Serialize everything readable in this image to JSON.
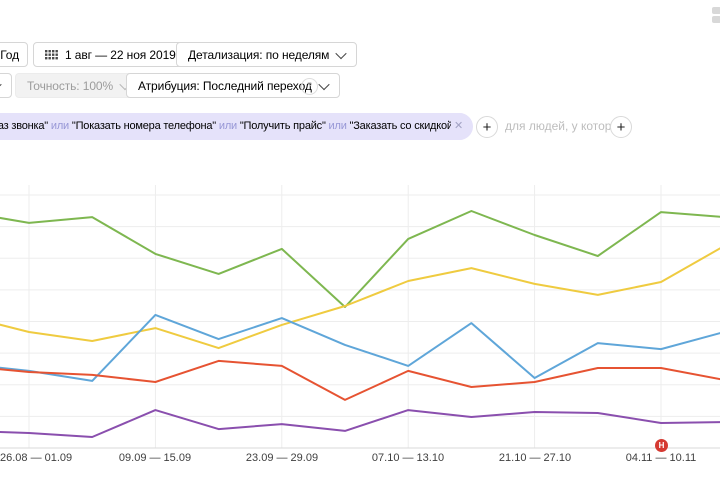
{
  "toolbar": {
    "period": "Год",
    "date_range": "1 авг — 22 ноя 2019",
    "granularity": "Детализация: по неделям",
    "accuracy": "Точность: 100%",
    "attribution": "Атрибуция: Последний переход"
  },
  "segment_bar": {
    "connector": "или",
    "goals": [
      "\"Заказ звонка\"",
      "\"Показать номера телефона\"",
      "\"Получить прайс\"",
      "\"Заказать со скидкой\""
    ],
    "add_condition_placeholder": "для людей, у которых"
  },
  "icons": {
    "help": "?",
    "close": "✕",
    "plus": "+"
  },
  "chart_data": {
    "type": "line",
    "title": "",
    "xlabel": "",
    "ylabel": "",
    "ylim": [
      0,
      100
    ],
    "grid": true,
    "legend_position": "none",
    "x_tick_labels": [
      "26.08 — 01.09",
      "09.09 — 15.09",
      "23.09 — 29.09",
      "07.10 — 13.10",
      "21.10 — 27.10",
      "04.11 — 10.11"
    ],
    "x_tick_point_indices": [
      1,
      3,
      5,
      7,
      9,
      11
    ],
    "series": [
      {
        "name": "green",
        "color": "#7eb750",
        "values": [
          89.7,
          85.6,
          87.8,
          73.8,
          66.2,
          75.7,
          53.6,
          79.5,
          90.1,
          81.0,
          73.0,
          89.7,
          87.8
        ]
      },
      {
        "name": "yellow",
        "color": "#efcb40",
        "values": [
          50.2,
          44.1,
          40.7,
          45.6,
          38.0,
          46.8,
          54.0,
          63.5,
          68.4,
          62.4,
          58.2,
          63.1,
          76.8
        ]
      },
      {
        "name": "blue",
        "color": "#5fa6d9",
        "values": [
          31.9,
          29.3,
          25.5,
          50.6,
          41.4,
          49.4,
          39.2,
          31.2,
          47.5,
          26.6,
          39.9,
          37.6,
          44.1
        ]
      },
      {
        "name": "red",
        "color": "#e65332",
        "values": [
          31.2,
          28.9,
          27.8,
          25.1,
          33.1,
          31.2,
          18.3,
          29.3,
          23.2,
          25.1,
          30.4,
          30.4,
          25.9
        ]
      },
      {
        "name": "purple",
        "color": "#8a4fae",
        "values": [
          6.5,
          5.7,
          4.2,
          14.4,
          7.2,
          9.1,
          6.5,
          14.4,
          11.8,
          13.7,
          13.3,
          9.5,
          9.9
        ]
      }
    ],
    "annotation_marker": {
      "label": "Н",
      "point_index": 11,
      "color": "#d53a32"
    }
  }
}
